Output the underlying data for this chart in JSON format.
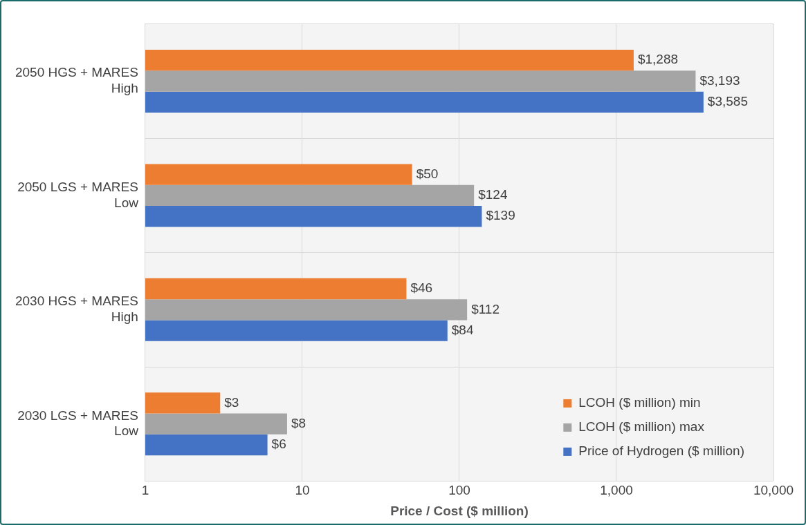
{
  "chart_data": {
    "type": "bar",
    "orientation": "horizontal",
    "log": "x",
    "xlabel": "Price / Cost ($ million)",
    "categories": [
      "2050 HGS + MARES High",
      "2050 LGS + MARES Low",
      "2030 HGS + MARES High",
      "2030 LGS + MARES Low"
    ],
    "series": [
      {
        "name": "LCOH ($ million) min",
        "color": "#ed7d31",
        "values": [
          1288,
          50,
          46,
          3
        ],
        "value_labels": [
          "$1,288",
          "$50",
          "$46",
          "$3"
        ]
      },
      {
        "name": "LCOH ($ million) max",
        "color": "#a5a5a5",
        "values": [
          3193,
          124,
          112,
          8
        ],
        "value_labels": [
          "$3,193",
          "$124",
          "$112",
          "$8"
        ]
      },
      {
        "name": "Price of Hydrogen ($ million)",
        "color": "#4472c4",
        "values": [
          3585,
          139,
          84,
          6
        ],
        "value_labels": [
          "$3,585",
          "$139",
          "$84",
          "$6"
        ]
      }
    ],
    "xlim": [
      1,
      10000
    ],
    "xticks": [
      1,
      10,
      100,
      {
        "value": 1000,
        "label": "1,000"
      },
      {
        "value": 10000,
        "label": "10,000"
      }
    ],
    "grid": true,
    "legend": "bottom right"
  }
}
